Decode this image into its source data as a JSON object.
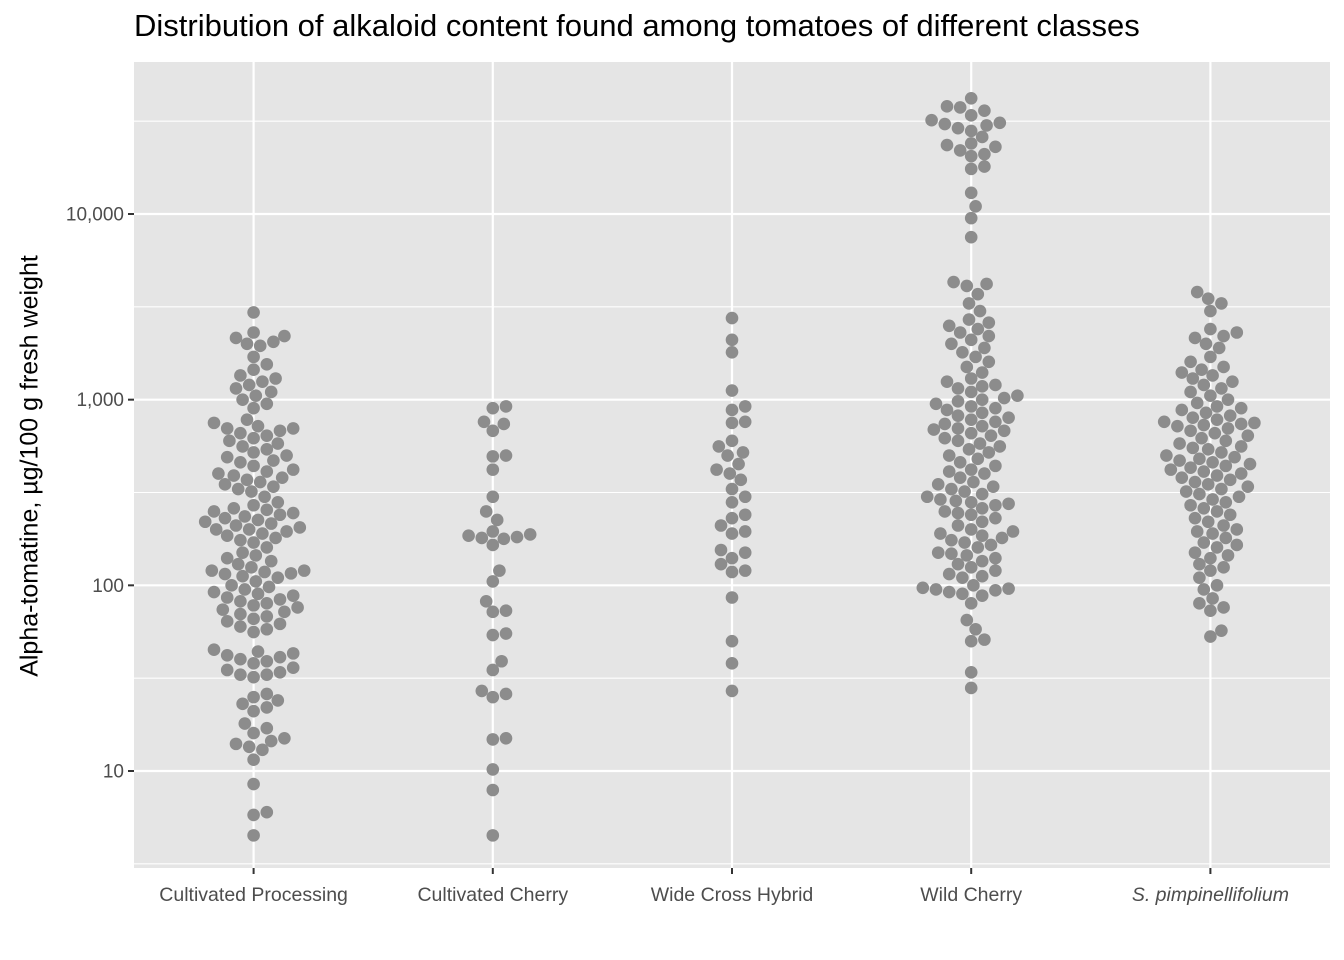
{
  "chart_data": {
    "type": "scatter",
    "subtype": "beeswarm",
    "title": "Distribution of alkaloid content found among tomatoes of different classes",
    "xlabel": "",
    "ylabel": "Alpha-tomatine, µg/100 g fresh weight",
    "yscale": "log10",
    "ylim": [
      3,
      60000
    ],
    "yticks": [
      10,
      100,
      1000,
      10000
    ],
    "ytick_labels": [
      "10",
      "100",
      "1,000",
      "10,000"
    ],
    "grid": true,
    "legend": null,
    "point_color": "#8c8c8c",
    "panel_background": "#e5e5e5",
    "categories": [
      "Cultivated Processing",
      "Cultivated Cherry",
      "Wide Cross Hybrid",
      "Wild Cherry",
      "S. pimpinellifolium"
    ],
    "category_italic": [
      false,
      false,
      false,
      false,
      true
    ],
    "series": [
      {
        "name": "Cultivated Processing",
        "values": [
          2950,
          2300,
          2200,
          2150,
          2050,
          2000,
          1950,
          1700,
          1550,
          1450,
          1350,
          1300,
          1250,
          1200,
          1150,
          1100,
          1050,
          1000,
          950,
          900,
          780,
          750,
          720,
          700,
          700,
          680,
          660,
          640,
          620,
          600,
          580,
          560,
          540,
          520,
          500,
          490,
          470,
          460,
          440,
          420,
          410,
          400,
          390,
          380,
          370,
          360,
          350,
          340,
          330,
          320,
          300,
          280,
          270,
          260,
          255,
          250,
          245,
          240,
          235,
          230,
          225,
          220,
          215,
          210,
          205,
          200,
          200,
          195,
          190,
          185,
          180,
          175,
          170,
          160,
          150,
          145,
          140,
          135,
          130,
          125,
          120,
          120,
          118,
          116,
          115,
          112,
          110,
          105,
          100,
          98,
          95,
          92,
          90,
          88,
          86,
          84,
          82,
          80,
          78,
          76,
          74,
          72,
          70,
          68,
          66,
          64,
          62,
          60,
          58,
          56,
          45,
          44,
          43,
          42,
          41,
          40,
          39,
          38,
          36,
          35,
          34,
          33,
          33,
          32,
          26,
          25,
          24,
          23,
          22,
          21,
          18,
          17,
          16,
          15,
          14.5,
          14,
          13.5,
          13,
          11.5,
          8.5,
          6,
          5.8,
          4.5
        ]
      },
      {
        "name": "Cultivated Cherry",
        "values": [
          920,
          900,
          760,
          740,
          680,
          500,
          495,
          420,
          300,
          250,
          225,
          195,
          188,
          185,
          182,
          180,
          178,
          165,
          120,
          105,
          82,
          73,
          72,
          55,
          54,
          39,
          35,
          27,
          26,
          25,
          15,
          14.8,
          10.2,
          7.9,
          4.5
        ]
      },
      {
        "name": "Wide Cross Hybrid",
        "values": [
          2750,
          2100,
          1800,
          1120,
          920,
          880,
          760,
          750,
          600,
          560,
          520,
          500,
          450,
          420,
          400,
          370,
          330,
          300,
          280,
          240,
          230,
          210,
          195,
          190,
          155,
          150,
          140,
          130,
          120,
          118,
          86,
          50,
          38,
          27
        ]
      },
      {
        "name": "Wild Cherry",
        "values": [
          42000,
          38000,
          37500,
          36000,
          34000,
          32000,
          31000,
          30500,
          30000,
          29000,
          28000,
          26000,
          24000,
          23500,
          23000,
          22000,
          21000,
          20500,
          18000,
          17500,
          13000,
          11000,
          9500,
          7500,
          4300,
          4200,
          4100,
          3700,
          3300,
          3000,
          2700,
          2600,
          2500,
          2400,
          2300,
          2200,
          2100,
          2000,
          1900,
          1800,
          1700,
          1600,
          1500,
          1400,
          1300,
          1250,
          1200,
          1180,
          1150,
          1100,
          1050,
          1020,
          1000,
          980,
          950,
          920,
          900,
          880,
          850,
          820,
          800,
          780,
          760,
          740,
          720,
          700,
          690,
          680,
          660,
          640,
          620,
          600,
          580,
          560,
          540,
          520,
          500,
          480,
          460,
          440,
          420,
          410,
          400,
          380,
          360,
          350,
          340,
          330,
          320,
          310,
          300,
          290,
          285,
          280,
          275,
          270,
          260,
          250,
          245,
          240,
          230,
          220,
          210,
          200,
          195,
          190,
          185,
          180,
          175,
          170,
          165,
          160,
          150,
          148,
          145,
          140,
          135,
          130,
          125,
          120,
          115,
          112,
          110,
          100,
          97,
          96,
          95,
          94,
          92,
          90,
          88,
          80,
          65,
          58,
          51,
          50,
          34,
          28
        ]
      },
      {
        "name": "S. pimpinellifolium",
        "values": [
          3800,
          3500,
          3300,
          3000,
          2400,
          2300,
          2200,
          2150,
          2000,
          1900,
          1700,
          1600,
          1500,
          1450,
          1400,
          1350,
          1300,
          1250,
          1200,
          1150,
          1100,
          1050,
          1000,
          960,
          920,
          900,
          880,
          850,
          820,
          800,
          780,
          760,
          750,
          740,
          730,
          720,
          700,
          680,
          660,
          640,
          620,
          600,
          580,
          560,
          550,
          540,
          520,
          500,
          490,
          480,
          470,
          460,
          450,
          440,
          430,
          420,
          410,
          400,
          390,
          380,
          370,
          360,
          350,
          340,
          330,
          320,
          310,
          300,
          290,
          280,
          270,
          260,
          250,
          240,
          230,
          220,
          210,
          200,
          195,
          190,
          180,
          170,
          165,
          160,
          150,
          145,
          140,
          130,
          125,
          120,
          110,
          100,
          95,
          85,
          80,
          76,
          73,
          57,
          53
        ]
      }
    ]
  }
}
